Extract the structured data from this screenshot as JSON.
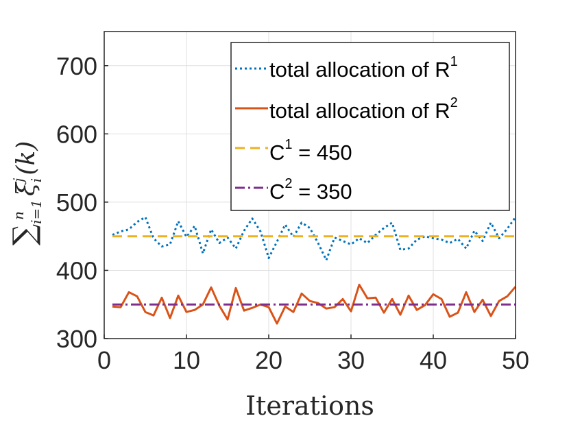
{
  "chart_data": {
    "type": "line",
    "title": "",
    "xlabel": "Iterations",
    "ylabel": "∑ξ_i^j(k)",
    "ylabel_parts": {
      "sigma": "∑",
      "sub": "i=1",
      "sup": "n",
      "xi": "ξ",
      "xi_sub": "i",
      "xi_sup": "j",
      "arg": "(k)"
    },
    "xlim": [
      0,
      50
    ],
    "ylim": [
      300,
      750
    ],
    "xticks": [
      0,
      10,
      20,
      30,
      40,
      50
    ],
    "yticks": [
      300,
      400,
      500,
      600,
      700
    ],
    "grid": true,
    "legend_position": "top-right",
    "series": [
      {
        "name": "total allocation of R",
        "name_sup": "1",
        "color": "#0072BD",
        "style": "dotted",
        "x": [
          1,
          2,
          3,
          4,
          5,
          6,
          7,
          8,
          9,
          10,
          11,
          12,
          13,
          14,
          15,
          16,
          17,
          18,
          19,
          20,
          21,
          22,
          23,
          24,
          25,
          26,
          27,
          28,
          29,
          30,
          31,
          32,
          33,
          34,
          35,
          36,
          37,
          38,
          39,
          40,
          41,
          42,
          43,
          44,
          45,
          46,
          47,
          48,
          49,
          50
        ],
        "values": [
          452,
          457,
          460,
          471,
          478,
          447,
          435,
          438,
          472,
          449,
          465,
          425,
          460,
          440,
          448,
          432,
          458,
          476,
          457,
          418,
          442,
          467,
          449,
          470,
          462,
          440,
          415,
          448,
          443,
          438,
          447,
          440,
          452,
          462,
          470,
          430,
          432,
          445,
          450,
          447,
          445,
          440,
          446,
          432,
          458,
          443,
          470,
          447,
          461,
          478
        ]
      },
      {
        "name": "total allocation of R",
        "name_sup": "2",
        "color": "#D95319",
        "style": "solid",
        "x": [
          1,
          2,
          3,
          4,
          5,
          6,
          7,
          8,
          9,
          10,
          11,
          12,
          13,
          14,
          15,
          16,
          17,
          18,
          19,
          20,
          21,
          22,
          23,
          24,
          25,
          26,
          27,
          28,
          29,
          30,
          31,
          32,
          33,
          34,
          35,
          36,
          37,
          38,
          39,
          40,
          41,
          42,
          43,
          44,
          45,
          46,
          47,
          48,
          49,
          50
        ],
        "values": [
          347,
          346,
          368,
          362,
          339,
          334,
          360,
          330,
          363,
          339,
          342,
          350,
          375,
          348,
          328,
          374,
          341,
          345,
          350,
          346,
          322,
          347,
          339,
          366,
          355,
          352,
          344,
          346,
          358,
          340,
          379,
          359,
          360,
          338,
          358,
          335,
          363,
          342,
          349,
          365,
          358,
          332,
          338,
          368,
          339,
          357,
          333,
          355,
          362,
          376
        ]
      },
      {
        "name": "C",
        "name_sup": "1",
        "name_suffix": " = 450",
        "color": "#EDB120",
        "style": "dashed",
        "x": [
          1,
          50
        ],
        "values": [
          450,
          450
        ]
      },
      {
        "name": "C",
        "name_sup": "2",
        "name_suffix": " = 350",
        "color": "#7E2F8E",
        "style": "dashdot",
        "x": [
          1,
          50
        ],
        "values": [
          350,
          350
        ]
      }
    ]
  }
}
